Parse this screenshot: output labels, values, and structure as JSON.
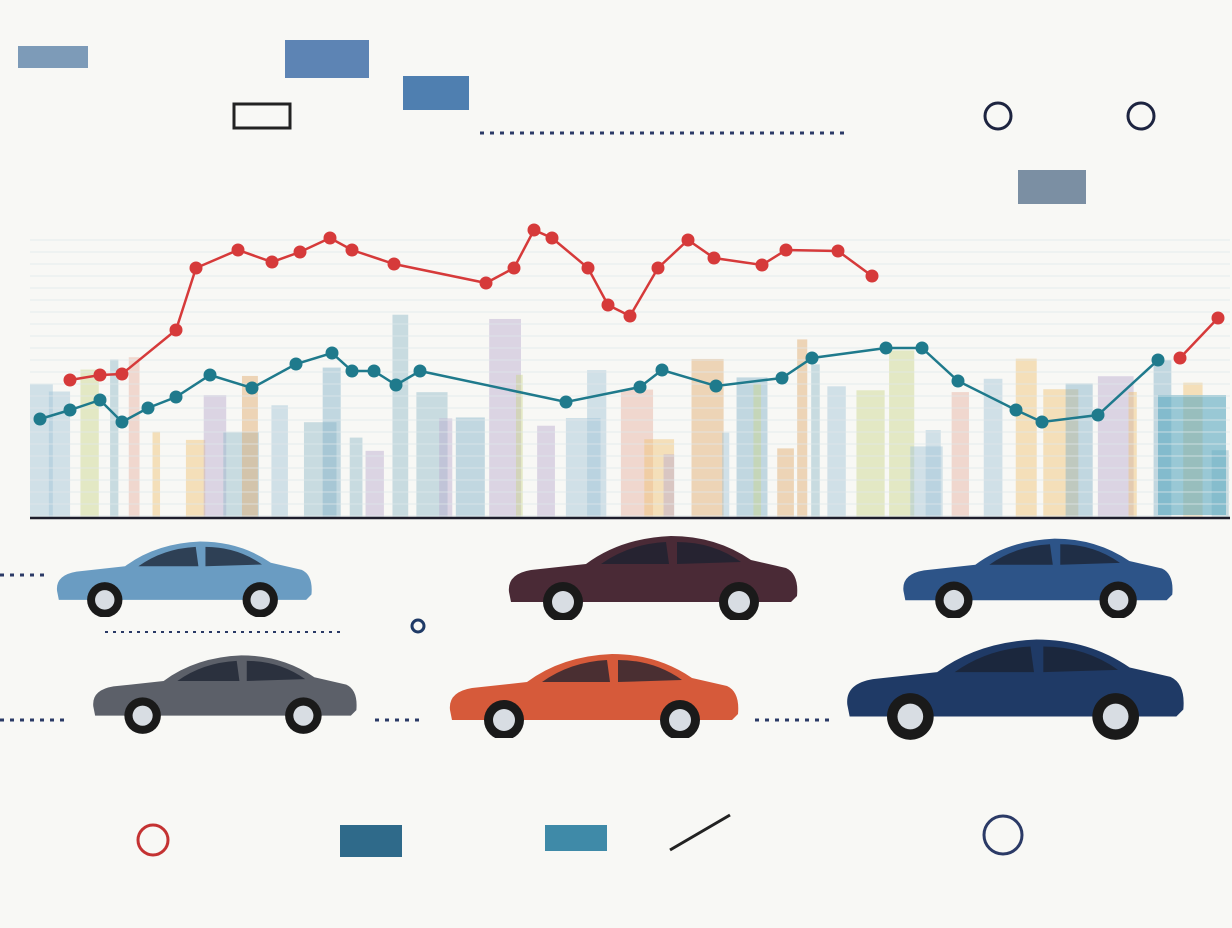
{
  "chart_data": {
    "type": "line",
    "series": [
      {
        "color": "#d63a3a",
        "x": [
          70,
          100,
          122,
          176,
          196,
          238,
          272,
          300,
          330,
          352,
          394,
          486,
          514,
          534,
          552,
          588,
          608,
          630,
          658,
          688,
          714,
          762,
          786,
          838,
          872,
          1000,
          1180,
          1218
        ],
        "values": [
          140,
          145,
          146,
          190,
          252,
          270,
          258,
          268,
          282,
          270,
          256,
          237,
          252,
          290,
          282,
          252,
          215,
          204,
          252,
          280,
          262,
          255,
          270,
          269,
          244,
          null,
          162,
          202
        ]
      },
      {
        "color": "#1f7a8c",
        "x": [
          40,
          70,
          100,
          122,
          148,
          176,
          210,
          252,
          296,
          332,
          352,
          374,
          396,
          420,
          566,
          640,
          662,
          716,
          782,
          812,
          886,
          922,
          958,
          1016,
          1042,
          1098,
          1158
        ],
        "values": [
          101,
          110,
          120,
          98,
          112,
          123,
          145,
          132,
          156,
          167,
          149,
          149,
          135,
          149,
          118,
          133,
          150,
          134,
          142,
          162,
          172,
          172,
          139,
          110,
          98,
          105,
          160
        ]
      }
    ]
  }
}
